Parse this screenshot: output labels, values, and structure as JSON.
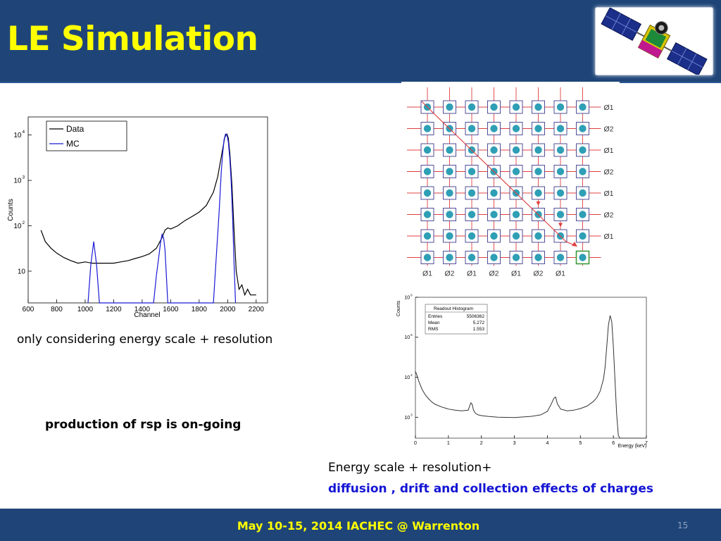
{
  "slide": {
    "title": "LE Simulation",
    "footer": "May 10-15, 2014  IACHEC @ Warrenton",
    "page_number": "15",
    "caption_left": "only considering energy scale + resolution",
    "caption_production": "production of rsp is on-going",
    "caption_right_line1": "Energy scale + resolution+",
    "caption_right_line2": "diffusion ,  drift and collection effects of charges",
    "logo": "satellite-icon"
  },
  "pixel_diagram": {
    "row_labels": [
      "Ø1",
      "Ø2",
      "Ø1",
      "Ø2",
      "Ø1",
      "Ø2",
      "Ø1"
    ],
    "column_labels": [
      "Ø1",
      "Ø2",
      "Ø1",
      "Ø2",
      "Ø1",
      "Ø2",
      "Ø1"
    ],
    "rows": 8,
    "columns": 8,
    "colors": {
      "pixel_dot": "#2f9fb5",
      "pixel_box": "#3c3c8c",
      "phase_line": "#e04040",
      "readout_box": "#3a9a3a"
    }
  },
  "chart_data": [
    {
      "type": "line",
      "xlabel": "Channel",
      "ylabel": "Counts",
      "x_ticks": [
        "600",
        "800",
        "1000",
        "1200",
        "1400",
        "1600",
        "1800",
        "2000",
        "2200"
      ],
      "y_ticks": [
        "10",
        "10",
        "10",
        "10"
      ],
      "y_tick_exponents": [
        "4",
        "3",
        "2",
        ""
      ],
      "xlim": [
        600,
        2280
      ],
      "yscale": "log",
      "ylim": [
        2,
        25000
      ],
      "legend_position": "top-left",
      "series": [
        {
          "name": "Data",
          "color": "#000000",
          "x": [
            690,
            720,
            760,
            800,
            850,
            900,
            950,
            1000,
            1050,
            1100,
            1150,
            1200,
            1250,
            1300,
            1350,
            1400,
            1450,
            1500,
            1540,
            1560,
            1580,
            1600,
            1650,
            1700,
            1750,
            1800,
            1850,
            1900,
            1930,
            1960,
            1980,
            1995,
            2005,
            2015,
            2030,
            2045,
            2060,
            2080,
            2100,
            2120,
            2140,
            2160,
            2180,
            2200
          ],
          "y": [
            80,
            45,
            32,
            25,
            20,
            17,
            15,
            16,
            15,
            15,
            15,
            15,
            16,
            17,
            19,
            21,
            24,
            32,
            55,
            80,
            90,
            85,
            100,
            130,
            160,
            200,
            280,
            550,
            1200,
            4000,
            9000,
            10500,
            8500,
            4000,
            800,
            80,
            10,
            4,
            5,
            3,
            4,
            3,
            3,
            3
          ]
        },
        {
          "name": "MC",
          "color": "#1a1ad6",
          "x": [
            1020,
            1040,
            1060,
            1080,
            1100,
            1480,
            1500,
            1520,
            1530,
            1540,
            1550,
            1560,
            1570,
            1580,
            1900,
            1920,
            1940,
            1955,
            1965,
            1975,
            1985,
            1995,
            2005,
            2015,
            2025,
            2035,
            2045,
            2055
          ],
          "y": [
            2,
            14,
            45,
            14,
            2,
            2,
            8,
            25,
            45,
            65,
            55,
            30,
            8,
            2,
            2,
            20,
            200,
            1500,
            4000,
            8000,
            10500,
            10000,
            7000,
            3000,
            900,
            150,
            15,
            2
          ]
        }
      ]
    },
    {
      "type": "line",
      "xlabel": "Energy (keV)",
      "ylabel": "Counts",
      "x_ticks": [
        "0",
        "1",
        "2",
        "3",
        "4",
        "5",
        "6",
        "7"
      ],
      "y_ticks": [
        "10",
        "10",
        "10",
        "10"
      ],
      "y_tick_exponents": [
        "6",
        "5",
        "4",
        "3"
      ],
      "xlim": [
        0,
        7
      ],
      "yscale": "log",
      "ylim": [
        300,
        1000000
      ],
      "stats_box": {
        "title": "Readout Histogram",
        "rows": [
          {
            "label": "Entries",
            "value": "5506362"
          },
          {
            "label": "Mean",
            "value": "5.272"
          },
          {
            "label": "RMS",
            "value": "1.553"
          }
        ]
      },
      "series": [
        {
          "color": "#333333",
          "x": [
            0.0,
            0.05,
            0.1,
            0.2,
            0.3,
            0.4,
            0.5,
            0.6,
            0.8,
            1.0,
            1.2,
            1.4,
            1.6,
            1.68,
            1.72,
            1.76,
            1.82,
            1.9,
            2.0,
            2.2,
            2.5,
            3.0,
            3.5,
            3.8,
            4.0,
            4.1,
            4.2,
            4.25,
            4.3,
            4.4,
            4.6,
            4.8,
            5.0,
            5.2,
            5.4,
            5.5,
            5.6,
            5.7,
            5.75,
            5.8,
            5.85,
            5.9,
            5.95,
            6.0,
            6.05,
            6.1,
            6.15,
            6.2,
            7.0
          ],
          "y": [
            14000,
            11000,
            8000,
            5000,
            3600,
            2900,
            2400,
            2100,
            1800,
            1600,
            1500,
            1450,
            1500,
            2300,
            2100,
            1500,
            1250,
            1150,
            1100,
            1050,
            1000,
            980,
            1050,
            1150,
            1400,
            2000,
            3000,
            3200,
            2200,
            1600,
            1450,
            1500,
            1650,
            1900,
            2500,
            3100,
            4500,
            9000,
            18000,
            60000,
            200000,
            350000,
            250000,
            60000,
            8000,
            1200,
            350,
            300,
            300
          ]
        }
      ]
    }
  ]
}
